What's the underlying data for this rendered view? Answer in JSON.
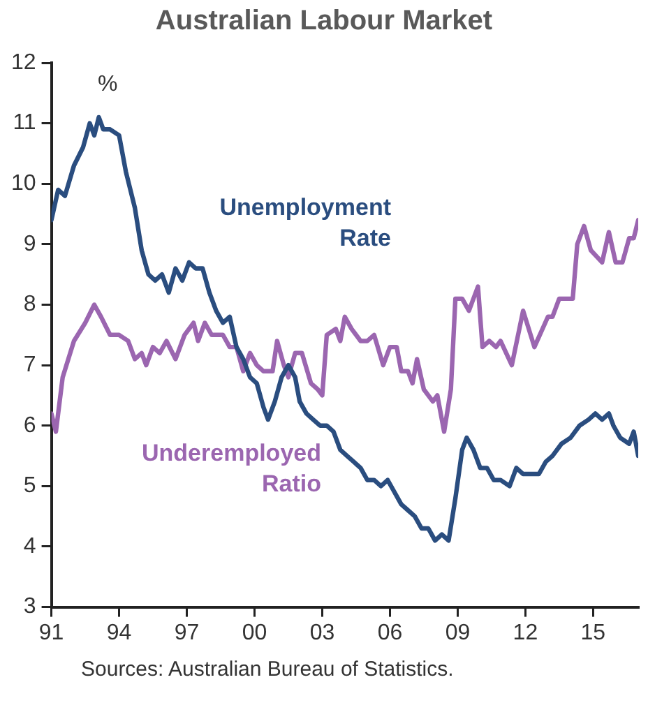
{
  "chart_data": {
    "type": "line",
    "title": "Australian Labour Market",
    "ylabel": "%",
    "annotations": [
      "Sources: Australian Bureau of Statistics."
    ],
    "xlim": [
      1991,
      2017
    ],
    "xticks": [
      {
        "value": 1991,
        "label": "91"
      },
      {
        "value": 1994,
        "label": "94"
      },
      {
        "value": 1997,
        "label": "97"
      },
      {
        "value": 2000,
        "label": "00"
      },
      {
        "value": 2003,
        "label": "03"
      },
      {
        "value": 2006,
        "label": "06"
      },
      {
        "value": 2009,
        "label": "09"
      },
      {
        "value": 2012,
        "label": "12"
      },
      {
        "value": 2015,
        "label": "15"
      }
    ],
    "ylim": [
      3,
      12
    ],
    "yticks": [
      3,
      4,
      5,
      6,
      7,
      8,
      9,
      10,
      11,
      12
    ],
    "grid": false,
    "legend": false,
    "marker": "none",
    "line_style": "solid",
    "series": [
      {
        "name": "Unemployment Rate",
        "color": "#2a4d7f",
        "x": [
          1991.0,
          1991.3,
          1991.6,
          1992.0,
          1992.4,
          1992.7,
          1992.9,
          1993.1,
          1993.3,
          1993.6,
          1994.0,
          1994.3,
          1994.7,
          1995.0,
          1995.3,
          1995.6,
          1995.9,
          1996.2,
          1996.5,
          1996.8,
          1997.1,
          1997.4,
          1997.7,
          1998.0,
          1998.3,
          1998.6,
          1998.9,
          1999.2,
          1999.5,
          1999.8,
          2000.1,
          2000.4,
          2000.6,
          2000.9,
          2001.2,
          2001.5,
          2001.8,
          2002.0,
          2002.3,
          2002.6,
          2002.9,
          2003.2,
          2003.5,
          2003.8,
          2004.1,
          2004.4,
          2004.7,
          2005.0,
          2005.3,
          2005.6,
          2005.9,
          2006.2,
          2006.5,
          2006.8,
          2007.1,
          2007.4,
          2007.7,
          2008.0,
          2008.3,
          2008.6,
          2008.9,
          2009.2,
          2009.4,
          2009.7,
          2010.0,
          2010.3,
          2010.6,
          2010.9,
          2011.3,
          2011.6,
          2011.9,
          2012.3,
          2012.6,
          2012.9,
          2013.2,
          2013.6,
          2014.0,
          2014.4,
          2014.8,
          2015.1,
          2015.4,
          2015.7,
          2015.9,
          2016.2,
          2016.6,
          2016.8,
          2017.0
        ],
        "values": [
          9.4,
          9.9,
          9.8,
          10.3,
          10.6,
          11.0,
          10.8,
          11.1,
          10.9,
          10.9,
          10.8,
          10.2,
          9.6,
          8.9,
          8.5,
          8.4,
          8.5,
          8.2,
          8.6,
          8.4,
          8.7,
          8.6,
          8.6,
          8.2,
          7.9,
          7.7,
          7.8,
          7.3,
          7.1,
          6.8,
          6.7,
          6.3,
          6.1,
          6.4,
          6.8,
          7.0,
          6.8,
          6.4,
          6.2,
          6.1,
          6.0,
          6.0,
          5.9,
          5.6,
          5.5,
          5.4,
          5.3,
          5.1,
          5.1,
          5.0,
          5.1,
          4.9,
          4.7,
          4.6,
          4.5,
          4.3,
          4.3,
          4.1,
          4.2,
          4.1,
          4.8,
          5.6,
          5.8,
          5.6,
          5.3,
          5.3,
          5.1,
          5.1,
          5.0,
          5.3,
          5.2,
          5.2,
          5.2,
          5.4,
          5.5,
          5.7,
          5.8,
          6.0,
          6.1,
          6.2,
          6.1,
          6.2,
          6.0,
          5.8,
          5.7,
          5.9,
          5.5
        ]
      },
      {
        "name": "Underemployed Ratio",
        "color": "#9b66b0",
        "x": [
          1991.0,
          1991.2,
          1991.5,
          1992.0,
          1992.5,
          1992.9,
          1993.2,
          1993.6,
          1994.0,
          1994.4,
          1994.7,
          1995.0,
          1995.2,
          1995.5,
          1995.8,
          1996.1,
          1996.5,
          1996.9,
          1997.3,
          1997.5,
          1997.8,
          1998.1,
          1998.6,
          1998.9,
          1999.2,
          1999.5,
          1999.8,
          2000.1,
          2000.4,
          2000.8,
          2001.0,
          2001.3,
          2001.5,
          2001.8,
          2002.1,
          2002.5,
          2002.8,
          2003.0,
          2003.2,
          2003.6,
          2003.8,
          2004.0,
          2004.3,
          2004.7,
          2005.0,
          2005.3,
          2005.7,
          2006.0,
          2006.3,
          2006.5,
          2006.8,
          2007.0,
          2007.2,
          2007.5,
          2007.9,
          2008.1,
          2008.4,
          2008.7,
          2008.9,
          2009.2,
          2009.5,
          2009.9,
          2010.1,
          2010.4,
          2010.7,
          2010.9,
          2011.4,
          2011.9,
          2012.4,
          2013.0,
          2013.2,
          2013.5,
          2014.1,
          2014.3,
          2014.6,
          2014.9,
          2015.4,
          2015.7,
          2016.0,
          2016.3,
          2016.6,
          2016.8,
          2017.0
        ],
        "values": [
          6.2,
          5.9,
          6.8,
          7.4,
          7.7,
          8.0,
          7.8,
          7.5,
          7.5,
          7.4,
          7.1,
          7.2,
          7.0,
          7.3,
          7.2,
          7.4,
          7.1,
          7.5,
          7.7,
          7.4,
          7.7,
          7.5,
          7.5,
          7.3,
          7.3,
          6.9,
          7.2,
          7.0,
          6.9,
          6.9,
          7.4,
          7.0,
          6.8,
          7.2,
          7.2,
          6.7,
          6.6,
          6.5,
          7.5,
          7.6,
          7.4,
          7.8,
          7.6,
          7.4,
          7.4,
          7.5,
          7.0,
          7.3,
          7.3,
          6.9,
          6.9,
          6.7,
          7.1,
          6.6,
          6.4,
          6.5,
          5.9,
          6.6,
          8.1,
          8.1,
          7.9,
          8.3,
          7.3,
          7.4,
          7.3,
          7.4,
          7.0,
          7.9,
          7.3,
          7.8,
          7.8,
          8.1,
          8.1,
          9.0,
          9.3,
          8.9,
          8.7,
          9.2,
          8.7,
          8.7,
          9.1,
          9.1,
          9.4
        ]
      }
    ]
  }
}
